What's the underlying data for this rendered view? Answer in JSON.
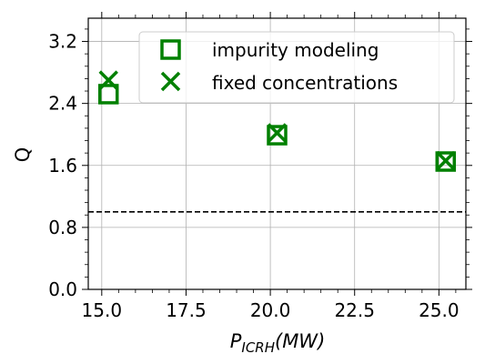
{
  "chart_data": {
    "type": "scatter",
    "xlabel": {
      "base": "P",
      "sub": "ICRH",
      "rest": "(MW)"
    },
    "ylabel": "Q",
    "xlim": [
      14.6,
      25.8
    ],
    "ylim": [
      0.0,
      3.5
    ],
    "xticks": [
      15.0,
      17.5,
      20.0,
      22.5,
      25.0
    ],
    "xtick_labels": [
      "15.0",
      "17.5",
      "20.0",
      "22.5",
      "25.0"
    ],
    "yticks": [
      0.0,
      0.8,
      1.6,
      2.4,
      3.2
    ],
    "ytick_labels": [
      "0.0",
      "0.8",
      "1.6",
      "2.4",
      "3.2"
    ],
    "grid": true,
    "legend_position": "top-right",
    "reference_line": {
      "y": 1.0,
      "style": "dashed",
      "color": "#000000"
    },
    "series": [
      {
        "name": "impurity modeling",
        "marker": "square",
        "color": "#008000",
        "x": [
          15.2,
          20.2,
          25.2
        ],
        "y": [
          2.52,
          1.99,
          1.65
        ]
      },
      {
        "name": "fixed concentrations",
        "marker": "x",
        "color": "#008000",
        "x": [
          15.2,
          20.2,
          25.2
        ],
        "y": [
          2.7,
          2.02,
          1.66
        ]
      }
    ]
  }
}
